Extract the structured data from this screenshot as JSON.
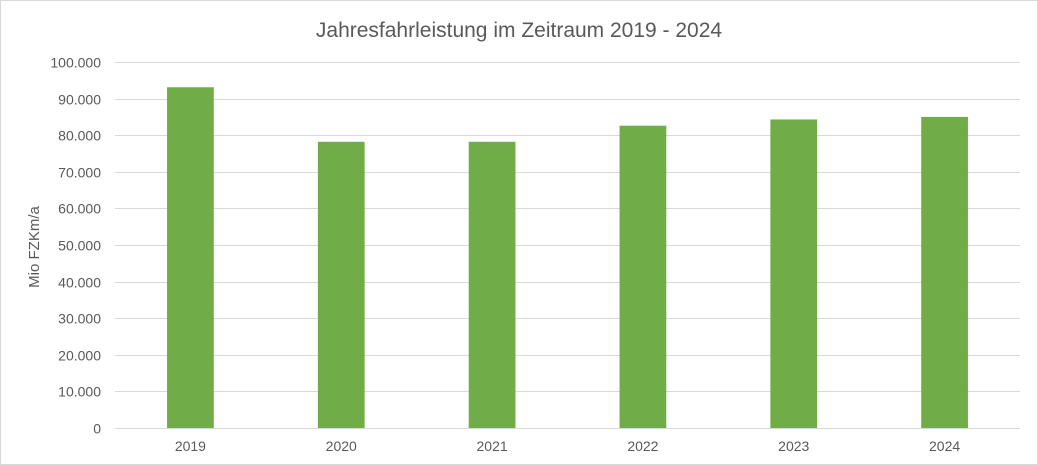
{
  "chart_data": {
    "type": "bar",
    "title": "Jahresfahrleistung im Zeitraum 2019 - 2024",
    "xlabel": "",
    "ylabel": "Mio FZKm/a",
    "categories": [
      "2019",
      "2020",
      "2021",
      "2022",
      "2023",
      "2024"
    ],
    "values": [
      93100,
      78200,
      78200,
      82600,
      84300,
      85000
    ],
    "ylim": [
      0,
      100000
    ],
    "y_ticks": [
      0,
      10000,
      20000,
      30000,
      40000,
      50000,
      60000,
      70000,
      80000,
      90000,
      100000
    ],
    "y_tick_labels": [
      "0",
      "10.000",
      "20.000",
      "30.000",
      "40.000",
      "50.000",
      "60.000",
      "70.000",
      "80.000",
      "90.000",
      "100.000"
    ],
    "grid": true,
    "legend": "none",
    "bar_color": "#70ad47",
    "grid_color": "#d9d9d9",
    "text_color": "#595959"
  }
}
